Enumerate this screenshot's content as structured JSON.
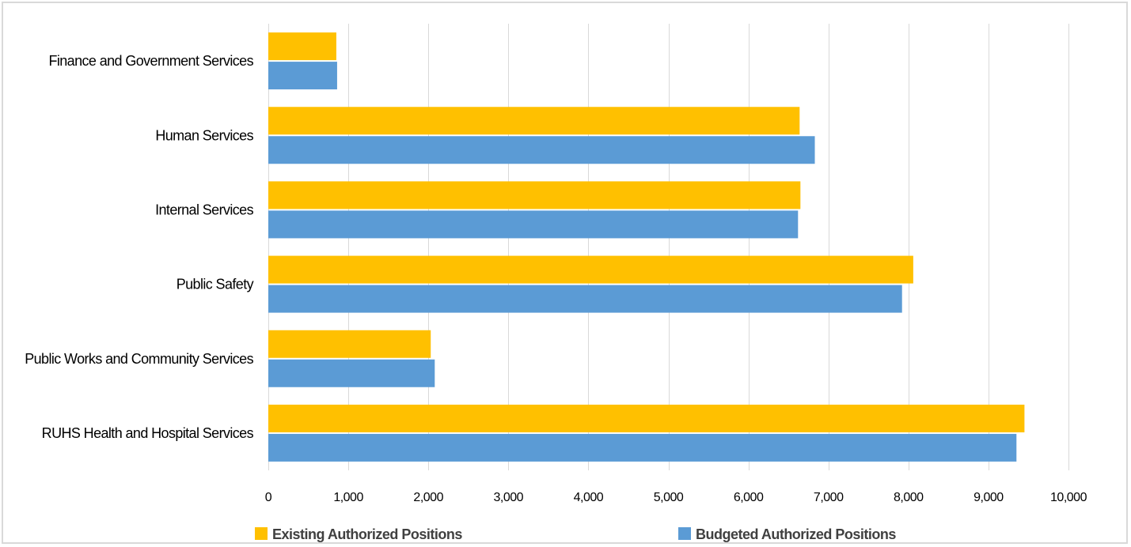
{
  "chart_data": {
    "type": "bar",
    "orientation": "horizontal",
    "categories": [
      "Finance and Government Services",
      "Human Services",
      "Internal Services",
      "Public Safety",
      "Public Works and Community Services",
      "RUHS Health and Hospital Services"
    ],
    "series": [
      {
        "name": "Existing Authorized Positions",
        "color": "#ffc000",
        "values": [
          850,
          6640,
          6650,
          8060,
          2030,
          9450
        ]
      },
      {
        "name": "Budgeted Authorized Positions",
        "color": "#5b9bd5",
        "values": [
          860,
          6830,
          6620,
          7920,
          2080,
          9350
        ]
      }
    ],
    "xlim": [
      0,
      10000
    ],
    "xticks": [
      0,
      1000,
      2000,
      3000,
      4000,
      5000,
      6000,
      7000,
      8000,
      9000,
      10000
    ],
    "xtick_labels": [
      "0",
      "1,000",
      "2,000",
      "3,000",
      "4,000",
      "5,000",
      "6,000",
      "7,000",
      "8,000",
      "9,000",
      "10,000"
    ],
    "grid": true,
    "legend_position": "bottom"
  }
}
